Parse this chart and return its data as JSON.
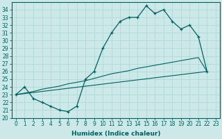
{
  "xlabel": "Humidex (Indice chaleur)",
  "background_color": "#cce8e8",
  "grid_color": "#b0d8d8",
  "line_color": "#006060",
  "xlim": [
    -0.5,
    23.5
  ],
  "ylim": [
    20,
    35
  ],
  "xticks": [
    0,
    1,
    2,
    3,
    4,
    5,
    6,
    7,
    8,
    9,
    10,
    11,
    12,
    13,
    14,
    15,
    16,
    17,
    18,
    19,
    20,
    21,
    22,
    23
  ],
  "yticks": [
    20,
    21,
    22,
    23,
    24,
    25,
    26,
    27,
    28,
    29,
    30,
    31,
    32,
    33,
    34
  ],
  "curve1_x": [
    0,
    1,
    2,
    3,
    4,
    5,
    6,
    7,
    8,
    9,
    10,
    11,
    12,
    13,
    14,
    15,
    16,
    17,
    18,
    19,
    20,
    21,
    22
  ],
  "curve1_y": [
    23.0,
    24.0,
    22.5,
    22.0,
    21.5,
    21.0,
    20.8,
    21.5,
    25.0,
    26.0,
    29.0,
    31.0,
    32.5,
    33.0,
    33.0,
    34.5,
    33.5,
    34.0,
    32.5,
    31.5,
    32.0,
    30.5,
    26.0
  ],
  "curve2_x": [
    0,
    1,
    2,
    3,
    4,
    5,
    6,
    7,
    8,
    9,
    10,
    11,
    12,
    13,
    14,
    15,
    16,
    17,
    18,
    19,
    20,
    21,
    22
  ],
  "curve2_y": [
    23.0,
    23.2,
    23.4,
    23.7,
    23.9,
    24.1,
    24.4,
    24.6,
    24.8,
    25.1,
    25.4,
    25.7,
    25.9,
    26.1,
    26.4,
    26.6,
    26.8,
    27.0,
    27.2,
    27.4,
    27.6,
    27.8,
    26.0
  ],
  "curve3_x": [
    0,
    22
  ],
  "curve3_y": [
    23.0,
    26.0
  ],
  "font_size_label": 6.5,
  "font_size_tick": 5.5
}
